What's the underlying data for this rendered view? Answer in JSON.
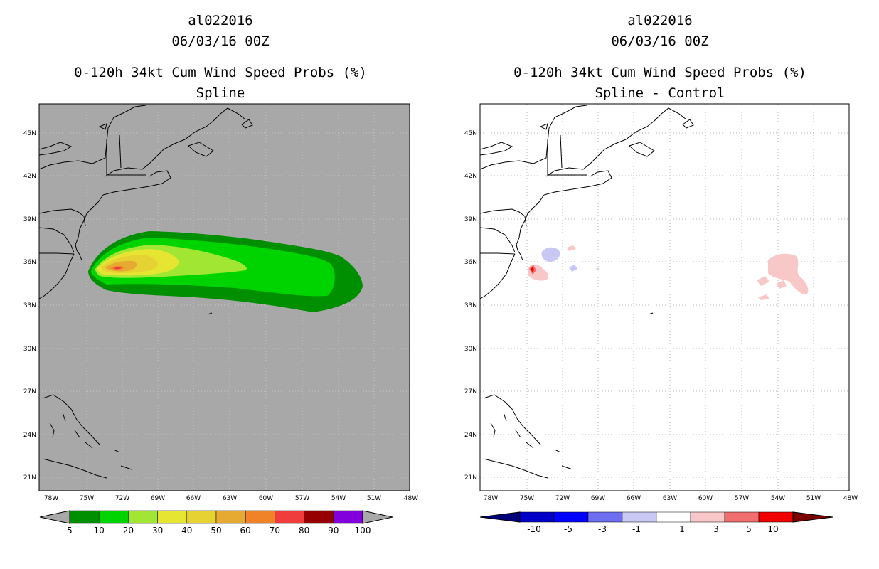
{
  "left_panel": {
    "storm_id": "al022016",
    "datetime": "06/03/16 00Z",
    "title": "0-120h 34kt Cum Wind Speed Probs (%)",
    "subtitle": "Spline",
    "background_color": "#a8a8a8"
  },
  "right_panel": {
    "storm_id": "al022016",
    "datetime": "06/03/16 00Z",
    "title": "0-120h 34kt Cum Wind Speed Probs (%)",
    "subtitle": "Spline - Control",
    "background_color": "#ffffff"
  },
  "map": {
    "lat_labels": [
      "45N",
      "42N",
      "39N",
      "36N",
      "33N",
      "30N",
      "27N",
      "24N",
      "21N"
    ],
    "lon_labels": [
      "78W",
      "75W",
      "72W",
      "69W",
      "66W",
      "63W",
      "60W",
      "57W",
      "54W",
      "51W",
      "48W"
    ]
  },
  "left_colorbar": {
    "colors": [
      "#008f00",
      "#00d400",
      "#a0e632",
      "#e6e632",
      "#e6d232",
      "#e6aa32",
      "#f08228",
      "#f03c3c",
      "#960000",
      "#8200dc"
    ],
    "labels": [
      "5",
      "10",
      "20",
      "30",
      "40",
      "50",
      "60",
      "70",
      "80",
      "90",
      "100"
    ],
    "end_color": "#a8a8a8"
  },
  "right_colorbar": {
    "colors": [
      "#0000c8",
      "#0000ff",
      "#6e6ef0",
      "#c8c8f5",
      "#ffffff",
      "#f8c8c8",
      "#f06e6e",
      "#f00000"
    ],
    "labels": [
      "-10",
      "-5",
      "-3",
      "-1",
      "1",
      "3",
      "5",
      "10"
    ],
    "left_end_color": "#00007a",
    "right_end_color": "#7a0000"
  }
}
